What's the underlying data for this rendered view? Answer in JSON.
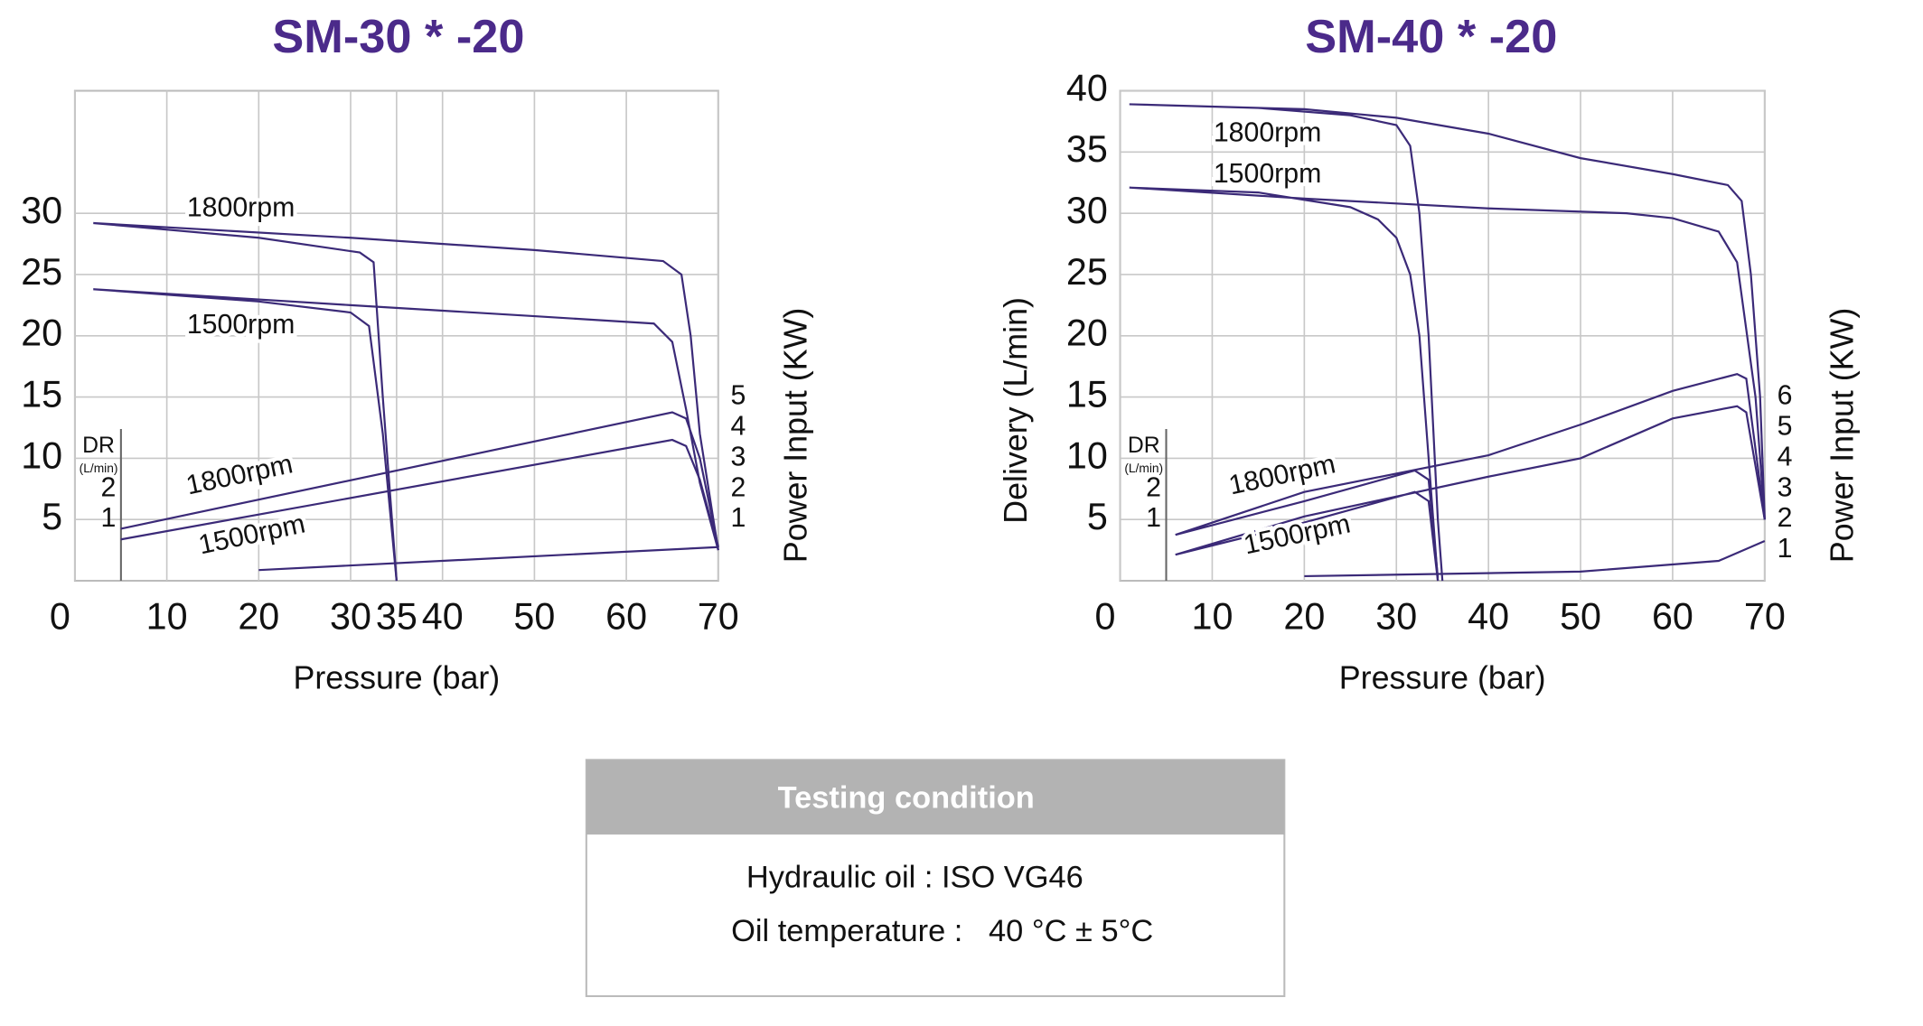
{
  "chart_data": [
    {
      "type": "line",
      "title": "SM-30 * -20",
      "xlabel": "Pressure (bar)",
      "y2label": "Power Input (KW)",
      "y3label": "DR",
      "y3unit": "(L/min)",
      "xlim": [
        0,
        70
      ],
      "xticks": [
        0,
        10,
        20,
        30,
        35,
        40,
        50,
        60,
        70
      ],
      "ylim": [
        0,
        40
      ],
      "yticks": [
        5,
        10,
        15,
        20,
        25,
        30
      ],
      "y2lim": [
        -1,
        15
      ],
      "y2ticks": [
        1,
        2,
        3,
        4,
        5
      ],
      "y3lim": [
        -1,
        15
      ],
      "y3ticks": [
        1,
        2
      ],
      "grid": true,
      "series": [
        {
          "name": "1800rpm",
          "color": "#3b2a78",
          "x": [
            2,
            20,
            31,
            32.5,
            33.5,
            35,
            null,
            2,
            30,
            50,
            64,
            66,
            67,
            68,
            70
          ],
          "values": [
            29.2,
            28,
            26.8,
            26,
            15,
            0,
            null,
            29.2,
            28,
            27,
            26.1,
            25,
            20,
            12,
            2.5
          ]
        },
        {
          "name": "1500rpm",
          "color": "#3b2a78",
          "x": [
            2,
            20,
            30,
            32,
            33.5,
            35,
            null,
            2,
            30,
            50,
            63,
            65,
            66.5,
            68,
            70
          ],
          "values": [
            23.8,
            22.8,
            21.9,
            20.8,
            12,
            0,
            null,
            23.8,
            22.5,
            21.6,
            21,
            19.5,
            14,
            8,
            2.5
          ]
        },
        {
          "name": "1800rpm",
          "color": "#3b2a78",
          "axis": "y2",
          "x": [
            5,
            65,
            66.5,
            68,
            70
          ],
          "values": [
            0.7,
            4.5,
            4.3,
            3,
            0.1
          ]
        },
        {
          "name": "1500rpm",
          "color": "#3b2a78",
          "axis": "y2",
          "x": [
            5,
            65,
            66.5,
            68,
            70
          ],
          "values": [
            0.35,
            3.6,
            3.4,
            2.3,
            0.1
          ]
        },
        {
          "color": "#3b2a78",
          "axis": "y3",
          "x": [
            20,
            70
          ],
          "values": [
            -0.65,
            0.1
          ]
        }
      ]
    },
    {
      "type": "line",
      "title": "SM-40 * -20",
      "xlabel": "Pressure (bar)",
      "ylabel": "Delivery (L/min)",
      "y2label": "Power Input (KW)",
      "y3label": "DR",
      "y3unit": "(L/min)",
      "xlim": [
        0,
        70
      ],
      "xticks": [
        0,
        10,
        20,
        30,
        40,
        50,
        60,
        70
      ],
      "ylim": [
        0,
        40
      ],
      "yticks": [
        5,
        10,
        15,
        20,
        25,
        30,
        35,
        40
      ],
      "y2lim": [
        0,
        16
      ],
      "y2ticks": [
        1,
        2,
        3,
        4,
        5,
        6
      ],
      "y3lim": [
        -1,
        15
      ],
      "y3ticks": [
        1,
        2
      ],
      "grid": true,
      "series": [
        {
          "name": "1800rpm",
          "color": "#3b2a78",
          "x": [
            1,
            15,
            25,
            30,
            31.5,
            32.5,
            33.5,
            34.5,
            35,
            null,
            1,
            20,
            30,
            40,
            50,
            60,
            66,
            67.5,
            68.5,
            69.5,
            70
          ],
          "values": [
            38.9,
            38.6,
            38,
            37.2,
            35.5,
            30,
            20,
            5,
            0,
            null,
            38.9,
            38.5,
            37.8,
            36.5,
            34.5,
            33.2,
            32.3,
            31,
            25,
            15,
            5
          ]
        },
        {
          "name": "1500rpm",
          "color": "#3b2a78",
          "x": [
            1,
            15,
            25,
            28,
            30,
            31.5,
            32.5,
            33.5,
            34.5,
            null,
            1,
            20,
            40,
            55,
            60,
            65,
            67,
            69,
            70
          ],
          "values": [
            32.1,
            31.7,
            30.5,
            29.5,
            28,
            25,
            20,
            10,
            0,
            null,
            32.1,
            31.2,
            30.4,
            30,
            29.6,
            28.5,
            26,
            15,
            5
          ]
        },
        {
          "name": "1800rpm",
          "color": "#3b2a78",
          "axis": "y2",
          "x": [
            6,
            20,
            32,
            33.5,
            34.5,
            null,
            6,
            20,
            40,
            50,
            60,
            67,
            68,
            70
          ],
          "values": [
            1.5,
            2.6,
            3.6,
            3.3,
            0.1,
            null,
            1.5,
            2.9,
            4.1,
            5.1,
            6.2,
            6.75,
            6.6,
            2
          ]
        },
        {
          "name": "1500rpm",
          "color": "#3b2a78",
          "axis": "y2",
          "x": [
            6,
            20,
            32,
            33.5,
            34.5,
            null,
            6,
            20,
            40,
            50,
            60,
            67,
            68,
            70
          ],
          "values": [
            0.85,
            1.9,
            2.9,
            2.6,
            0,
            null,
            0.85,
            2.1,
            3.4,
            4,
            5.3,
            5.7,
            5.5,
            2
          ]
        },
        {
          "color": "#3b2a78",
          "axis": "y3",
          "x": [
            20,
            50,
            65,
            70
          ],
          "values": [
            -0.85,
            -0.7,
            -0.35,
            0.3
          ]
        }
      ]
    }
  ],
  "table": {
    "title": "Testing condition",
    "rows": [
      "Hydraulic oil : ISO VG46",
      "Oil temperature :   40 °C ± 5°C"
    ]
  }
}
